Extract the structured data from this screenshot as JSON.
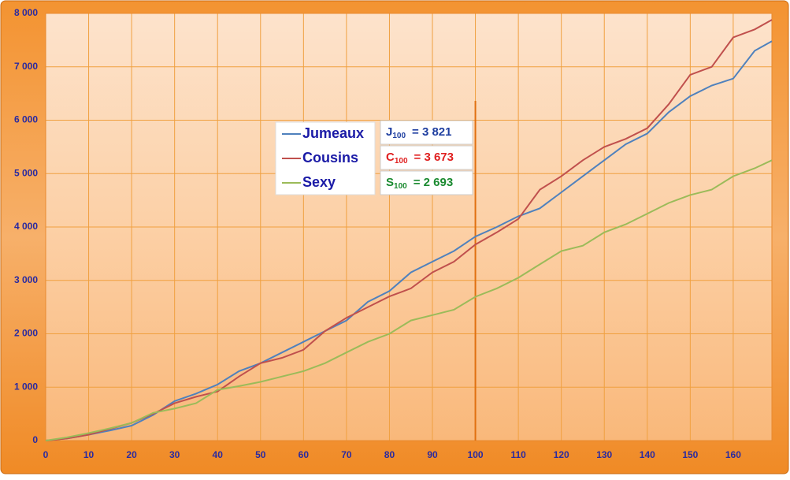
{
  "chart_data": {
    "type": "line",
    "x": [
      0,
      5,
      10,
      15,
      20,
      25,
      30,
      35,
      40,
      45,
      50,
      55,
      60,
      65,
      70,
      75,
      80,
      85,
      90,
      95,
      100,
      105,
      110,
      115,
      120,
      125,
      130,
      135,
      140,
      145,
      150,
      155,
      160,
      165,
      169
    ],
    "series": [
      {
        "name": "Jumeaux",
        "color": "#4f81bd",
        "values": [
          0,
          40,
          110,
          190,
          280,
          480,
          740,
          880,
          1050,
          1300,
          1450,
          1650,
          1850,
          2050,
          2250,
          2600,
          2800,
          3150,
          3350,
          3550,
          3821,
          4000,
          4200,
          4350,
          4650,
          4950,
          5250,
          5550,
          5750,
          6150,
          6450,
          6650,
          6780,
          7300,
          7480
        ]
      },
      {
        "name": "Cousins",
        "color": "#c0504d",
        "values": [
          0,
          40,
          110,
          220,
          330,
          500,
          700,
          820,
          920,
          1200,
          1450,
          1550,
          1700,
          2050,
          2300,
          2500,
          2700,
          2850,
          3150,
          3350,
          3673,
          3900,
          4150,
          4700,
          4950,
          5250,
          5500,
          5650,
          5850,
          6300,
          6850,
          7000,
          7550,
          7700,
          7880
        ]
      },
      {
        "name": "Sexy",
        "color": "#9bbb59",
        "values": [
          0,
          60,
          140,
          230,
          330,
          520,
          600,
          700,
          950,
          1020,
          1100,
          1200,
          1300,
          1450,
          1650,
          1850,
          2000,
          2250,
          2350,
          2450,
          2693,
          2850,
          3050,
          3300,
          3550,
          3650,
          3900,
          4050,
          4250,
          4450,
          4600,
          4700,
          4950,
          5100,
          5250
        ]
      }
    ],
    "xlim": [
      0,
      169
    ],
    "xticks": [
      0,
      10,
      20,
      30,
      40,
      50,
      60,
      70,
      80,
      90,
      100,
      110,
      120,
      130,
      140,
      150,
      160
    ],
    "ylim": [
      0,
      8000
    ],
    "yticks": [
      0,
      {
        "value": 1000,
        "label": "1 000"
      },
      {
        "value": 2000,
        "label": "2 000"
      },
      {
        "value": 3000,
        "label": "3 000"
      },
      {
        "value": 4000,
        "label": "4 000"
      },
      {
        "value": 5000,
        "label": "5 000"
      },
      {
        "value": 6000,
        "label": "6 000"
      },
      {
        "value": 7000,
        "label": "7 000"
      },
      {
        "value": 8000,
        "label": "8 000"
      }
    ],
    "grid": true,
    "vline_x": 100,
    "annotations": [
      {
        "letter": "J",
        "sub": "100",
        "text": "= 3 821",
        "color": "#1f3fa0"
      },
      {
        "letter": "C",
        "sub": "100",
        "text": "= 3 673",
        "color": "#e02020"
      },
      {
        "letter": "S",
        "sub": "100",
        "text": "= 2 693",
        "color": "#1a8a30"
      }
    ]
  }
}
